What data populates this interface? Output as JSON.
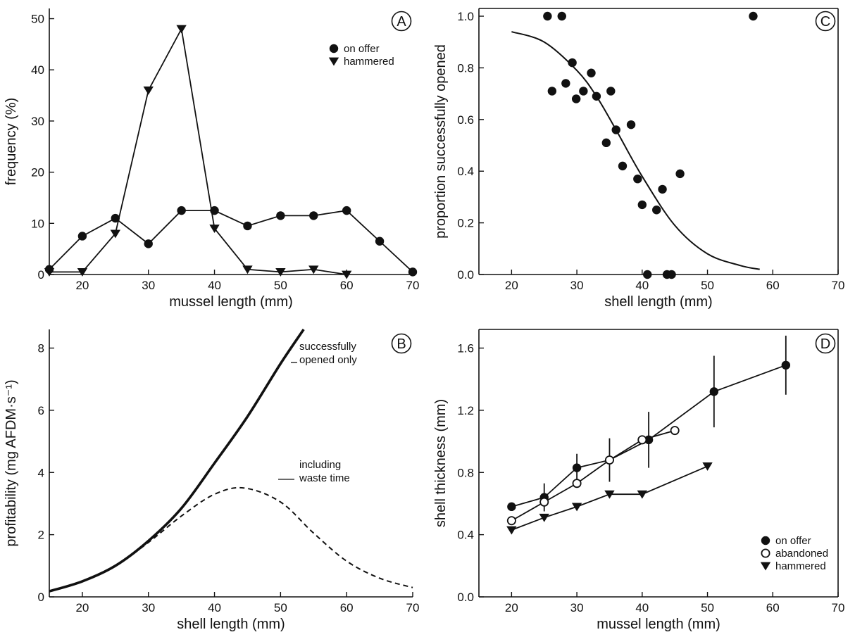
{
  "figure": {
    "colors": {
      "ink": "#111111",
      "background": "#ffffff"
    }
  },
  "chart_data": [
    {
      "id": "A",
      "panel_label": "A",
      "type": "line",
      "xlabel": "mussel length (mm)",
      "ylabel": "frequency (%)",
      "xlim": [
        15,
        70
      ],
      "ylim": [
        0,
        52
      ],
      "xticks": [
        20,
        30,
        40,
        50,
        60,
        70
      ],
      "yticks": [
        0,
        10,
        20,
        30,
        40,
        50
      ],
      "legend_position": "top-right",
      "grid": false,
      "series": [
        {
          "name": "on offer",
          "marker": "circle-filled",
          "x": [
            15,
            20,
            25,
            30,
            35,
            40,
            45,
            50,
            55,
            60,
            65,
            70
          ],
          "y": [
            1,
            7.5,
            11,
            6,
            12.5,
            12.5,
            9.5,
            11.5,
            11.5,
            12.5,
            6.5,
            0.5
          ]
        },
        {
          "name": "hammered",
          "marker": "triangle-down-filled",
          "x": [
            15,
            20,
            25,
            30,
            35,
            40,
            45,
            50,
            55,
            60
          ],
          "y": [
            0.5,
            0.5,
            8,
            36,
            48,
            9,
            1,
            0.5,
            1,
            0
          ]
        }
      ]
    },
    {
      "id": "C",
      "panel_label": "C",
      "type": "scatter",
      "xlabel": "shell length (mm)",
      "ylabel": "proportion successfully opened",
      "xlim": [
        15,
        70
      ],
      "ylim": [
        0,
        1.03
      ],
      "xticks": [
        20,
        30,
        40,
        50,
        60,
        70
      ],
      "yticks": [
        0.0,
        0.2,
        0.4,
        0.6,
        0.8,
        1.0
      ],
      "ytick_labels": [
        "0.0",
        "0.2",
        "0.4",
        "0.6",
        "0.8",
        "1.0"
      ],
      "grid": false,
      "series": [
        {
          "marker": "circle-filled",
          "x": [
            25.5,
            27.7,
            57,
            26.2,
            28.3,
            29.3,
            29.9,
            31,
            32.2,
            33,
            34.5,
            35.2,
            36,
            37,
            38.3,
            39.3,
            40,
            40.8,
            42.2,
            43.1,
            43.8,
            44.5,
            45.8
          ],
          "y": [
            1.0,
            1.0,
            1.0,
            0.71,
            0.74,
            0.82,
            0.68,
            0.71,
            0.78,
            0.69,
            0.51,
            0.71,
            0.56,
            0.42,
            0.58,
            0.37,
            0.27,
            0.0,
            0.25,
            0.33,
            0.0,
            0.0,
            0.39
          ]
        },
        {
          "marker": "none",
          "line": "fitted-curve",
          "x": [
            20,
            25,
            30,
            33,
            36,
            40,
            45,
            50,
            55,
            58
          ],
          "y": [
            0.94,
            0.9,
            0.79,
            0.69,
            0.56,
            0.38,
            0.19,
            0.08,
            0.035,
            0.02
          ]
        }
      ]
    },
    {
      "id": "B",
      "panel_label": "B",
      "type": "line",
      "xlabel": "shell length (mm)",
      "ylabel": "profitability (mg AFDM·s⁻¹)",
      "xlim": [
        15,
        70
      ],
      "ylim": [
        0,
        8.6
      ],
      "xticks": [
        20,
        30,
        40,
        50,
        60,
        70
      ],
      "yticks": [
        0,
        2,
        4,
        6,
        8
      ],
      "grid": false,
      "series": [
        {
          "name": "successfully opened only",
          "style": "solid-bold",
          "x": [
            15,
            20,
            25,
            30,
            35,
            40,
            45,
            50,
            53.5
          ],
          "y": [
            0.18,
            0.5,
            1.0,
            1.8,
            2.85,
            4.3,
            5.8,
            7.5,
            8.6
          ]
        },
        {
          "name": "including waste time",
          "style": "dashed",
          "x": [
            15,
            20,
            25,
            30,
            35,
            40,
            44.5,
            50,
            55,
            60,
            65,
            70
          ],
          "y": [
            0.18,
            0.5,
            1.0,
            1.75,
            2.6,
            3.3,
            3.5,
            3.05,
            2.05,
            1.15,
            0.6,
            0.3
          ]
        }
      ],
      "annotations": [
        {
          "lines": [
            "successfully",
            "opened only"
          ],
          "series": "successfully opened only"
        },
        {
          "lines": [
            "including",
            "waste time"
          ],
          "series": "including waste time"
        }
      ]
    },
    {
      "id": "D",
      "panel_label": "D",
      "type": "line",
      "xlabel": "mussel length (mm)",
      "ylabel": "shell thickness (mm)",
      "xlim": [
        15,
        70
      ],
      "ylim": [
        0.0,
        1.72
      ],
      "xticks": [
        20,
        30,
        40,
        50,
        60,
        70
      ],
      "yticks": [
        0.0,
        0.4,
        0.8,
        1.2,
        1.6
      ],
      "ytick_labels": [
        "0.0",
        "0.4",
        "0.8",
        "1.2",
        "1.6"
      ],
      "legend_position": "bottom-right",
      "grid": false,
      "series": [
        {
          "name": "on offer",
          "marker": "circle-filled",
          "x": [
            20,
            25,
            30,
            35,
            41,
            51,
            62
          ],
          "y": [
            0.58,
            0.64,
            0.83,
            0.88,
            1.01,
            1.32,
            1.49
          ],
          "error": [
            0.0,
            0.09,
            0.09,
            0.14,
            0.18,
            0.23,
            0.19
          ]
        },
        {
          "name": "abandoned",
          "marker": "circle-open",
          "x": [
            20,
            25,
            30,
            35,
            40,
            45
          ],
          "y": [
            0.49,
            0.61,
            0.73,
            0.88,
            1.01,
            1.07
          ],
          "error": []
        },
        {
          "name": "hammered",
          "marker": "triangle-down-filled",
          "x": [
            20,
            25,
            30,
            35,
            40,
            50
          ],
          "y": [
            0.43,
            0.51,
            0.58,
            0.66,
            0.66,
            0.84
          ],
          "error": []
        }
      ]
    }
  ]
}
